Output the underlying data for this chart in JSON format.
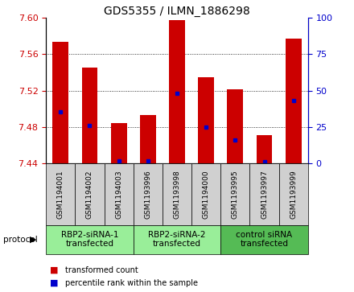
{
  "title": "GDS5355 / ILMN_1886298",
  "samples": [
    "GSM1194001",
    "GSM1194002",
    "GSM1194003",
    "GSM1193996",
    "GSM1193998",
    "GSM1194000",
    "GSM1193995",
    "GSM1193997",
    "GSM1193999"
  ],
  "bar_tops": [
    7.573,
    7.545,
    7.484,
    7.493,
    7.597,
    7.535,
    7.521,
    7.471,
    7.577
  ],
  "bar_base": 7.44,
  "blue_markers": [
    7.497,
    7.482,
    7.443,
    7.443,
    7.517,
    7.48,
    7.466,
    7.442,
    7.509
  ],
  "ylim_left": [
    7.44,
    7.6
  ],
  "ylim_right": [
    0,
    100
  ],
  "yticks_left": [
    7.44,
    7.48,
    7.52,
    7.56,
    7.6
  ],
  "yticks_right": [
    0,
    25,
    50,
    75,
    100
  ],
  "bar_color": "#cc0000",
  "blue_color": "#0000cc",
  "left_tick_color": "#cc0000",
  "right_tick_color": "#0000cc",
  "groups": [
    {
      "label": "RBP2-siRNA-1\ntransfected",
      "indices": [
        0,
        1,
        2
      ],
      "color": "#99ee99"
    },
    {
      "label": "RBP2-siRNA-2\ntransfected",
      "indices": [
        3,
        4,
        5
      ],
      "color": "#99ee99"
    },
    {
      "label": "control siRNA\ntransfected",
      "indices": [
        6,
        7,
        8
      ],
      "color": "#55bb55"
    }
  ],
  "legend_entries": [
    {
      "label": "transformed count",
      "color": "#cc0000"
    },
    {
      "label": "percentile rank within the sample",
      "color": "#0000cc"
    }
  ],
  "bg_color": "#ffffff",
  "plot_bg": "#ffffff",
  "bar_width": 0.55,
  "title_fontsize": 10,
  "sample_fontsize": 6.5,
  "group_fontsize": 7.5,
  "legend_fontsize": 7,
  "axis_fontsize": 8,
  "gray_box_color": "#d0d0d0"
}
